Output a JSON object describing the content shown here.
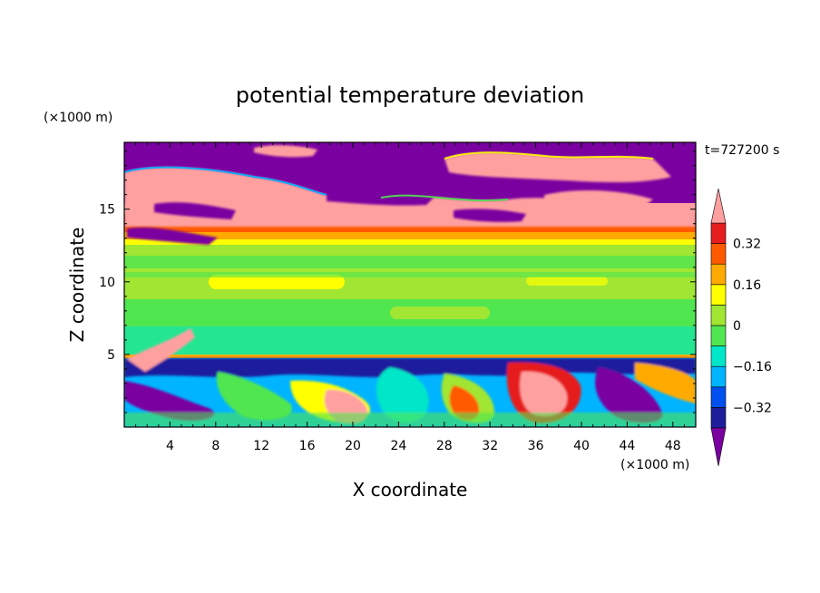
{
  "chart_data": {
    "type": "heatmap",
    "title": "potential temperature deviation",
    "xlabel": "X coordinate",
    "ylabel": "Z coordinate",
    "x_unit": "(×1000 m)",
    "y_unit": "(×1000 m)",
    "time_label": "t=727200 s",
    "xlim": [
      0,
      50
    ],
    "ylim": [
      0,
      19.6
    ],
    "x_ticks": [
      4,
      8,
      12,
      16,
      20,
      24,
      28,
      32,
      36,
      40,
      44,
      48
    ],
    "y_ticks": [
      5,
      10,
      15
    ],
    "colorbar": {
      "levels": [
        -0.4,
        -0.32,
        -0.24,
        -0.16,
        -0.08,
        0,
        0.08,
        0.16,
        0.24,
        0.32,
        0.4
      ],
      "labels": [
        "0.32",
        "0.16",
        "0",
        "−0.16",
        "−0.32"
      ],
      "label_values": [
        0.32,
        0.16,
        0,
        -0.16,
        -0.32
      ],
      "colors": [
        "#7a00a0",
        "#1e1e9c",
        "#0050f0",
        "#00b4ff",
        "#00e6c8",
        "#50e650",
        "#a0e632",
        "#ffff00",
        "#ffaa00",
        "#ff5a00",
        "#e61e1e",
        "#ffa0a0"
      ]
    },
    "regions": {
      "upper_layer_z": [
        13,
        19.6
      ],
      "upper_layer_dominant": [
        "#7a00a0",
        "#ffa0a0"
      ],
      "inversion_z": 13.2,
      "mid_layer_z": [
        5.2,
        13
      ],
      "mid_layer_dominant": [
        "#50e650",
        "#a0e632"
      ],
      "boundary_z": 5.2,
      "lower_layer_z": [
        0,
        5.2
      ],
      "lower_layer_mixed": true
    }
  }
}
